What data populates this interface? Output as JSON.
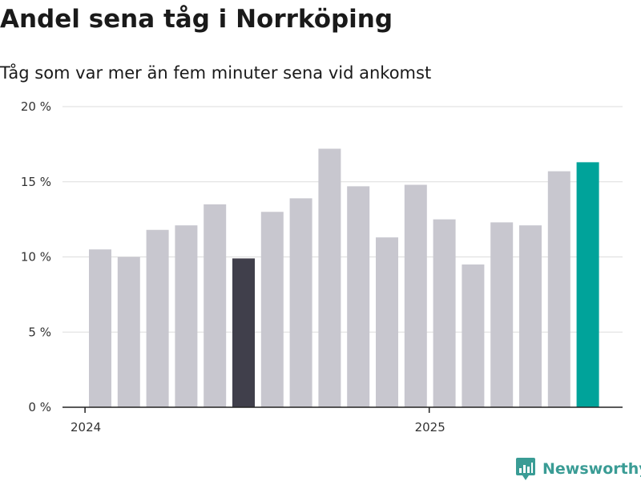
{
  "title": "Andel sena tåg i Norrköping",
  "subtitle": "Tåg som var mer än fem minuter sena vid ankomst",
  "brand": {
    "name": "Newsworthy",
    "logo_icon": "newsworthy-chart-logo-icon",
    "color": "#3a9c95"
  },
  "colors": {
    "default_bar": "#c8c7cf",
    "highlight_bar": "#403f4b",
    "latest_bar": "#00a39a",
    "grid": "#dddddd",
    "axis": "#222222"
  },
  "chart_data": {
    "type": "bar",
    "title": "Andel sena tåg i Norrköping",
    "subtitle": "Tåg som var mer än fem minuter sena vid ankomst",
    "xlabel": "",
    "ylabel": "",
    "x": [
      "2024-01",
      "2024-02",
      "2024-03",
      "2024-04",
      "2024-05",
      "2024-06",
      "2024-07",
      "2024-08",
      "2024-09",
      "2024-10",
      "2024-11",
      "2024-12",
      "2025-01",
      "2025-02",
      "2025-03",
      "2025-04",
      "2025-05",
      "2025-06"
    ],
    "values": [
      10.5,
      10.0,
      11.8,
      12.1,
      13.5,
      9.9,
      13.0,
      13.9,
      17.2,
      14.7,
      11.3,
      14.8,
      12.5,
      9.5,
      12.3,
      12.1,
      15.7,
      16.3
    ],
    "highlight": [
      "2024-06"
    ],
    "latest": [
      "2025-06"
    ],
    "xticks": [
      {
        "label": "2024",
        "at": "2024-01"
      },
      {
        "label": "2025",
        "at": "2025-01"
      }
    ],
    "yticks": [
      {
        "value": 0,
        "label": "0 %"
      },
      {
        "value": 5,
        "label": "5 %"
      },
      {
        "value": 10,
        "label": "10 %"
      },
      {
        "value": 15,
        "label": "15 %"
      },
      {
        "value": 20,
        "label": "20 %"
      }
    ],
    "ylim": [
      0,
      20
    ],
    "grid": true,
    "legend": "none"
  }
}
